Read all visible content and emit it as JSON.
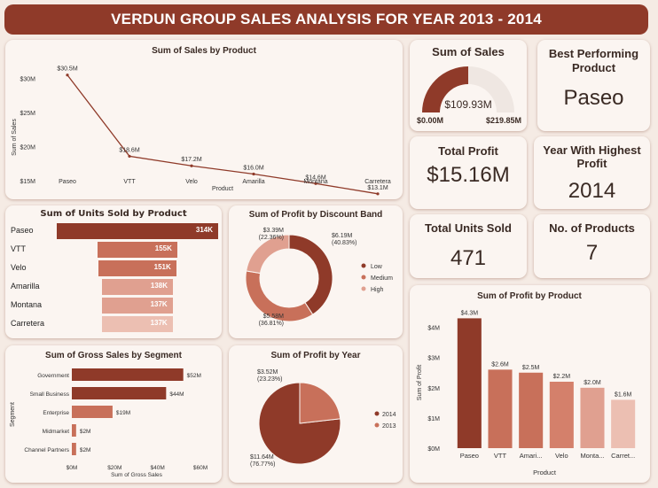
{
  "header": {
    "title": "VERDUN GROUP SALES ANALYSIS FOR YEAR 2013 - 2014"
  },
  "kpis": {
    "sum_of_sales": {
      "title": "Sum of Sales",
      "value": "$109.93M",
      "min": "$0.00M",
      "max": "$219.85M",
      "fraction": 0.5
    },
    "best_product": {
      "title": "Best Performing Product",
      "value": "Paseo"
    },
    "total_profit": {
      "title": "Total Profit",
      "value": "$15.16M"
    },
    "best_year": {
      "title": "Year With Highest Profit",
      "value": "2014"
    },
    "total_units": {
      "title": "Total Units Sold",
      "value": "471"
    },
    "num_products": {
      "title": "No. of Products",
      "value": "7"
    }
  },
  "colors": {
    "primary": "#8f3a29",
    "mid": "#c8705a",
    "light": "#e0a090",
    "lighter": "#ecbfb2",
    "banner": "#8f3a29"
  },
  "chart_data": [
    {
      "id": "sales_by_product",
      "type": "line",
      "title": "Sum of Sales by Product",
      "xlabel": "Product",
      "ylabel": "Sum of Sales",
      "categories": [
        "Paseo",
        "VTT",
        "Velo",
        "Amarilla",
        "Montana",
        "Carretera"
      ],
      "values": [
        30.5,
        18.6,
        17.2,
        16.0,
        14.6,
        13.1
      ],
      "labels": [
        "$30.5M",
        "$18.6M",
        "$17.2M",
        "$16.0M",
        "$14.6M",
        "$13.1M"
      ],
      "yticks": [
        "$15M",
        "$20M",
        "$25M",
        "$30M"
      ],
      "ytick_values": [
        15,
        20,
        25,
        30
      ],
      "ylim": [
        11,
        31.5
      ]
    },
    {
      "id": "units_by_product",
      "type": "bar",
      "orientation": "horizontal",
      "title": "Sum of Units Sold by Product",
      "categories": [
        "Paseo",
        "VTT",
        "Velo",
        "Amarilla",
        "Montana",
        "Carretera"
      ],
      "values": [
        314,
        155,
        151,
        138,
        137,
        137
      ],
      "labels": [
        "314K",
        "155K",
        "151K",
        "138K",
        "137K",
        "137K"
      ],
      "colors": [
        "#8f3a29",
        "#c8705a",
        "#c8705a",
        "#e0a090",
        "#e0a090",
        "#ecbfb2"
      ]
    },
    {
      "id": "profit_by_discount",
      "type": "pie",
      "donut": true,
      "title": "Sum of Profit by Discount Band",
      "categories": [
        "Low",
        "Medium",
        "High"
      ],
      "values": [
        6.19,
        5.58,
        3.39
      ],
      "labels": [
        "$6.19M\n(40.83%)",
        "$5.58M\n(36.81%)",
        "$3.39M\n(22.36%)"
      ],
      "colors": [
        "#8f3a29",
        "#c8705a",
        "#e0a090"
      ]
    },
    {
      "id": "gross_by_segment",
      "type": "bar",
      "orientation": "horizontal",
      "title": "Sum of Gross Sales by Segment",
      "xlabel": "Sum of Gross Sales",
      "ylabel": "Segment",
      "categories": [
        "Government",
        "Small Business",
        "Enterprise",
        "Midmarket",
        "Channel Partners"
      ],
      "values": [
        52,
        44,
        19,
        2,
        2
      ],
      "labels": [
        "$52M",
        "$44M",
        "$19M",
        "$2M",
        "$2M"
      ],
      "xticks": [
        "$0M",
        "$20M",
        "$40M",
        "$60M"
      ],
      "xtick_values": [
        0,
        20,
        40,
        60
      ],
      "xlim": [
        0,
        60
      ]
    },
    {
      "id": "profit_by_year",
      "type": "pie",
      "title": "Sum of Profit by Year",
      "categories": [
        "2014",
        "2013"
      ],
      "values": [
        11.64,
        3.52
      ],
      "labels": [
        "$11.64M\n(76.77%)",
        "$3.52M\n(23.23%)"
      ],
      "colors": [
        "#8f3a29",
        "#c8705a"
      ]
    },
    {
      "id": "profit_by_product",
      "type": "bar",
      "title": "Sum of Profit by Product",
      "xlabel": "Product",
      "ylabel": "Sum of Profit",
      "categories": [
        "Paseo",
        "VTT",
        "Amari...",
        "Velo",
        "Monta...",
        "Carret..."
      ],
      "values": [
        4.3,
        2.6,
        2.5,
        2.2,
        2.0,
        1.6
      ],
      "labels": [
        "$4.3M",
        "$2.6M",
        "$2.5M",
        "$2.2M",
        "$2.0M",
        "$1.6M"
      ],
      "yticks": [
        "$0M",
        "$1M",
        "$2M",
        "$3M",
        "$4M"
      ],
      "ytick_values": [
        0,
        1,
        2,
        3,
        4
      ],
      "ylim": [
        0,
        4.4
      ],
      "colors": [
        "#8f3a29",
        "#c8705a",
        "#c8705a",
        "#d4806b",
        "#e0a090",
        "#ecbfb2"
      ]
    }
  ]
}
